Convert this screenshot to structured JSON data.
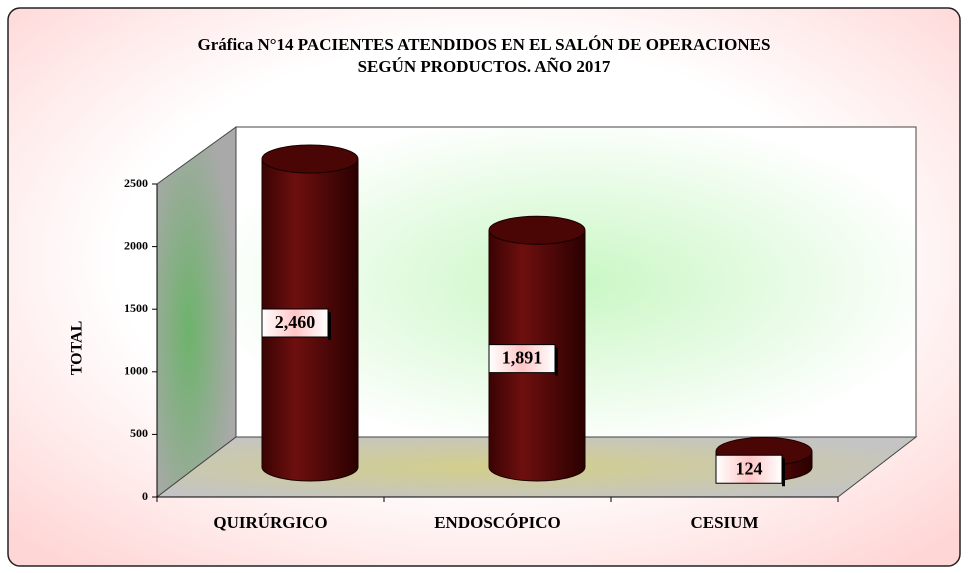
{
  "chart_data": {
    "type": "bar3d",
    "title": [
      "Gráfica N°14 PACIENTES ATENDIDOS EN EL SALÓN DE OPERACIONES",
      "SEGÚN PRODUCTOS.   AÑO 2017"
    ],
    "ylabel": "TOTAL",
    "categories": [
      "QUIRÚRGICO",
      "ENDOSCÓPICO",
      "CESIUM"
    ],
    "values": [
      2460,
      1891,
      124
    ],
    "value_labels": [
      "2,460",
      "1,891",
      "124"
    ],
    "color": "#5a0808",
    "ylim": [
      0,
      2500
    ],
    "yticks": [
      0,
      500,
      1000,
      1500,
      2000,
      2500
    ]
  }
}
